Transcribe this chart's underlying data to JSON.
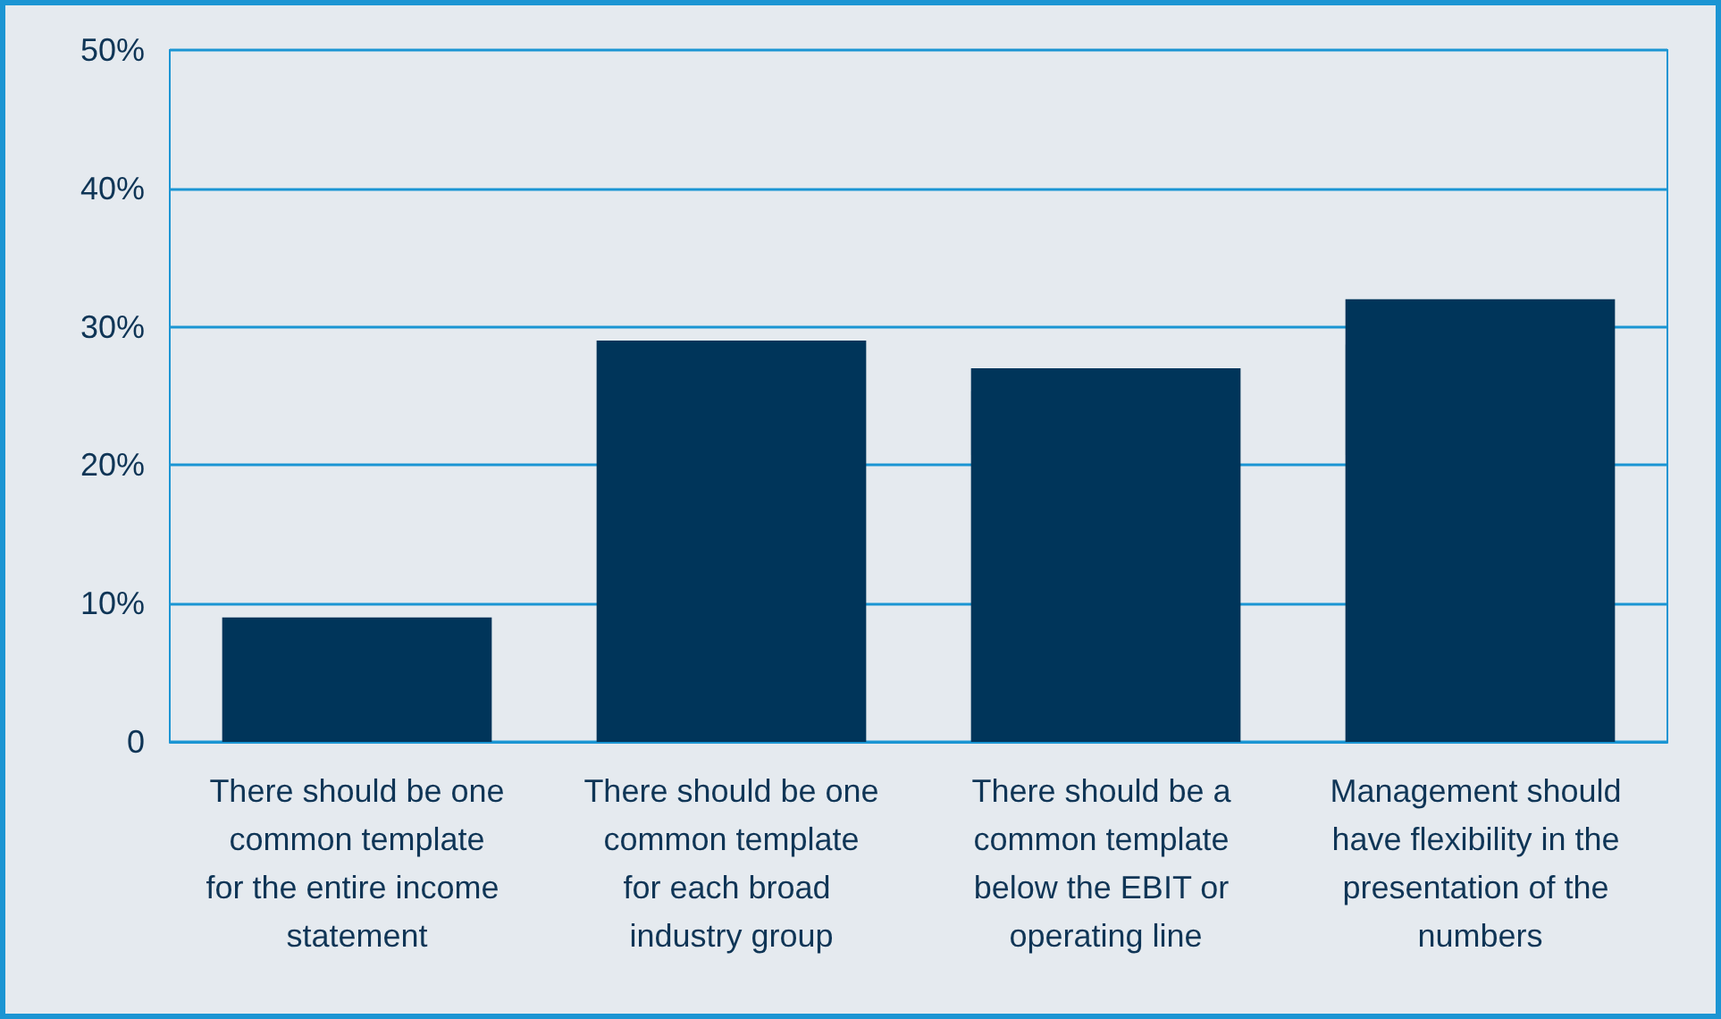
{
  "chart_data": {
    "type": "bar",
    "categories": [
      "There should be one common template for the entire income statement",
      "There should be one common template for each broad industry group",
      "There should be a common template below the EBIT or operating line",
      "Management should have flexibility in the presentation of the numbers"
    ],
    "values": [
      9,
      29,
      27,
      32
    ],
    "color": "#00355a",
    "ylim": [
      0,
      50
    ],
    "yticks": [
      0,
      {
        "value": 10,
        "label": "10%"
      },
      {
        "value": 20,
        "label": "20%"
      },
      {
        "value": 30,
        "label": "30%"
      },
      {
        "value": 40,
        "label": "40%"
      },
      {
        "value": 50,
        "label": "50%"
      }
    ],
    "grid": "y"
  }
}
